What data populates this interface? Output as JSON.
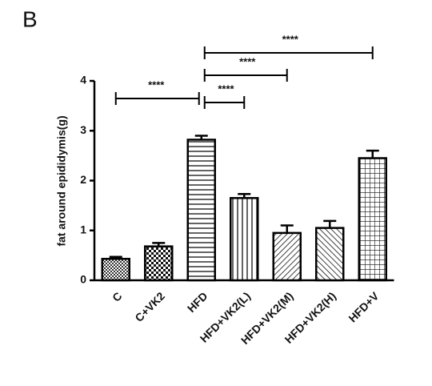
{
  "panel_label": "B",
  "chart_data": {
    "type": "bar",
    "ylabel": "fat around epididymis(g)",
    "categories": [
      "C",
      "C+VK2",
      "HFD",
      "HFD+VK2(L)",
      "HFD+VK2(M)",
      "HFD+VK2(H)",
      "HFD+V"
    ],
    "values": [
      0.43,
      0.68,
      2.82,
      1.65,
      0.95,
      1.05,
      2.45
    ],
    "errors": [
      0.04,
      0.07,
      0.08,
      0.08,
      0.15,
      0.14,
      0.15
    ],
    "patterns": [
      "dense-dots",
      "checker",
      "horizontal",
      "vertical",
      "diagonal-down",
      "diagonal-up",
      "grid"
    ],
    "color": "#000000",
    "ylim": [
      0,
      4
    ],
    "yticks": [
      0,
      1,
      2,
      3,
      4
    ],
    "significance": [
      {
        "label": "****",
        "between": [
          "C",
          "HFD"
        ]
      },
      {
        "label": "****",
        "between": [
          "HFD",
          "HFD+VK2(L)"
        ]
      },
      {
        "label": "****",
        "between": [
          "HFD",
          "HFD+VK2(M)"
        ]
      },
      {
        "label": "****",
        "between": [
          "HFD",
          "HFD+V"
        ]
      }
    ]
  }
}
